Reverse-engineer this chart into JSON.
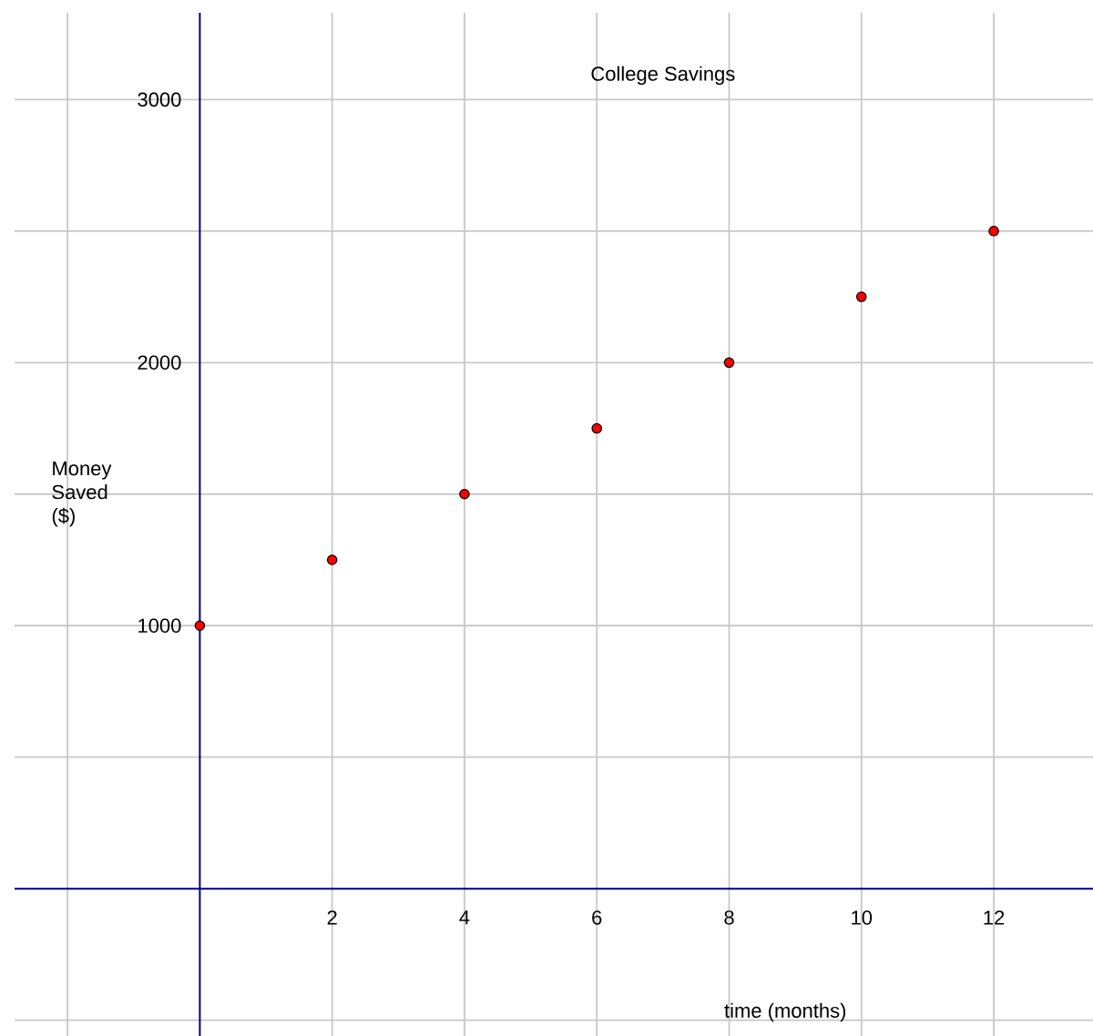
{
  "chart_data": {
    "type": "scatter",
    "title": "College Savings",
    "xlabel": "time (months)",
    "ylabel": "Money Saved ($)",
    "x": [
      0,
      2,
      4,
      6,
      8,
      10,
      12
    ],
    "series": [
      {
        "color": "#ff0000",
        "values": [
          1000,
          1250,
          1500,
          1750,
          2000,
          2250,
          2500
        ]
      }
    ],
    "xlim": [
      -2.8,
      13.5
    ],
    "ylim": [
      -560,
      3330
    ],
    "xticks": [
      {
        "value": -2,
        "label": null
      },
      {
        "value": 0,
        "label": null
      },
      2,
      4,
      6,
      8,
      10,
      12
    ],
    "yticks": [
      {
        "value": -500,
        "label": null
      },
      {
        "value": 0,
        "label": null
      },
      {
        "value": 500,
        "label": null
      },
      1000,
      {
        "value": 1500,
        "label": null
      },
      2000,
      {
        "value": 2500,
        "label": null
      },
      3000
    ],
    "grid": true,
    "marker": "circle"
  }
}
